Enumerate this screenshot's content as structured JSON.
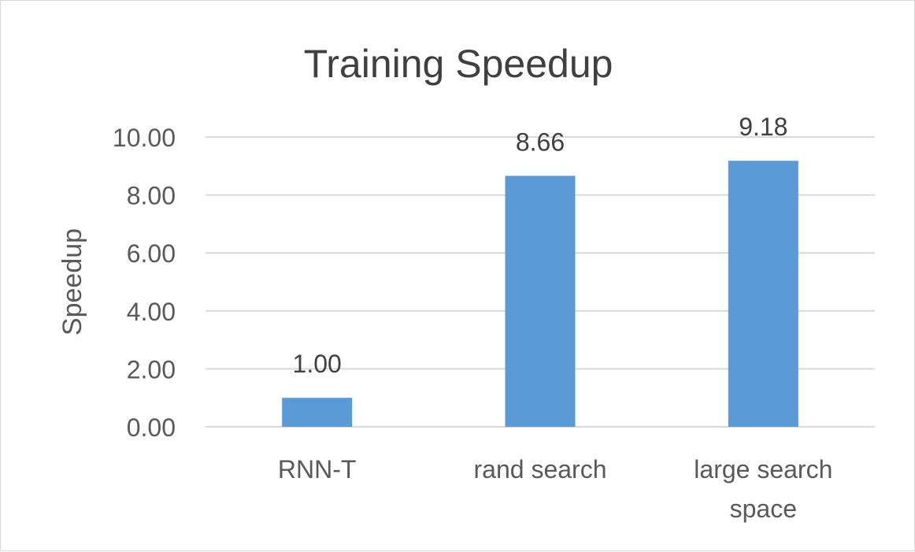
{
  "chart_data": {
    "type": "bar",
    "title": "Training Speedup",
    "xlabel": "",
    "ylabel": "Speedup",
    "categories": [
      [
        "RNN-T"
      ],
      [
        "rand search"
      ],
      [
        "large search",
        "space"
      ]
    ],
    "values": [
      1.0,
      8.66,
      9.18
    ],
    "data_labels": [
      "1.00",
      "8.66",
      "9.18"
    ],
    "yticks": [
      "0.00",
      "2.00",
      "4.00",
      "6.00",
      "8.00",
      "10.00"
    ],
    "ylim": [
      0,
      10
    ],
    "grid": true,
    "legend": "none",
    "bar_color": "#5b9bd5",
    "grid_color": "#d9d9d9",
    "text_color": "#595959",
    "title_color": "#404040"
  }
}
